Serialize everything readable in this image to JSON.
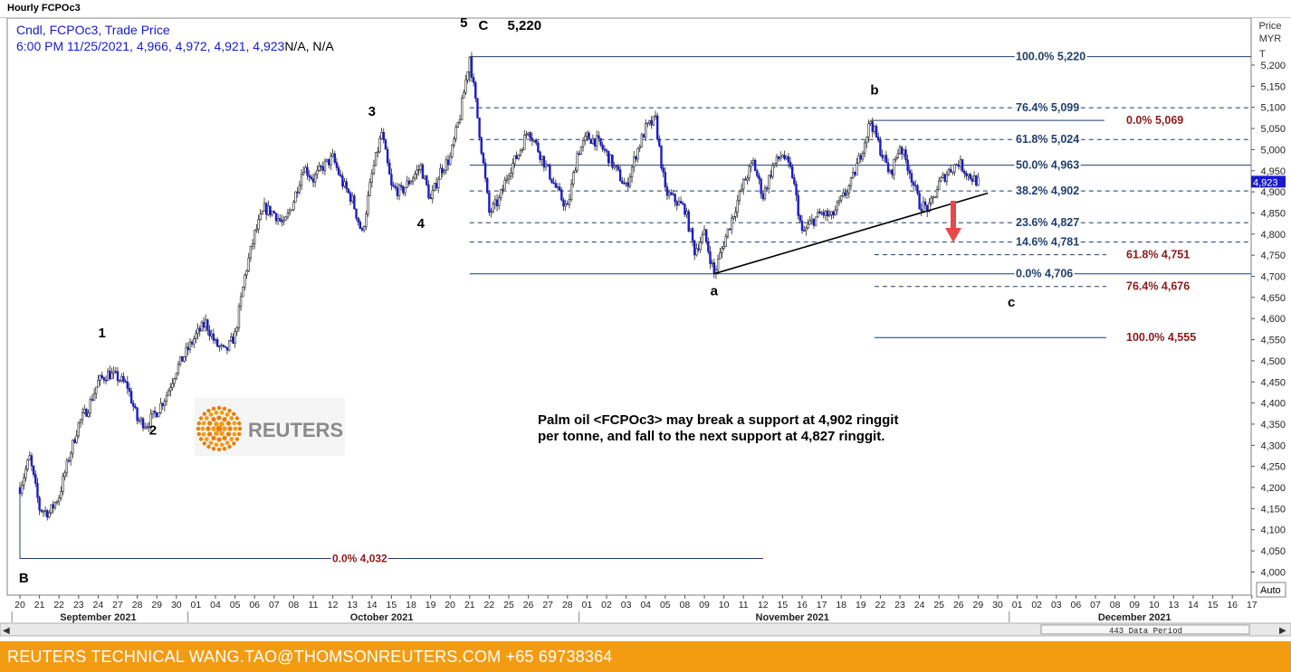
{
  "window": {
    "title": "Hourly FCPOc3"
  },
  "legend": {
    "line1": "Cndl, FCPOc3, Trade Price",
    "line2": "6:00 PM 11/25/2021, 4,966, 4,972, 4,921, 4,923",
    "line2_suffix": "N/A, N/A"
  },
  "price_axis": {
    "header1": "Price",
    "header2": "MYR",
    "header3": "T",
    "current_value": "4,923",
    "auto_label": "Auto"
  },
  "scrollbar": {
    "left_arrow": "◀",
    "right_arrow": "▶",
    "period_label": "443 Data Period"
  },
  "footer": {
    "text": "REUTERS TECHNICAL  WANG.TAO@THOMSONREUTERS.COM  +65 69738364"
  },
  "logo": {
    "text": "REUTERS"
  },
  "colors": {
    "up": "#ffffff",
    "down": "#1a1acc",
    "fib": "#1f3f6b",
    "fib_text": "#1f3f6b",
    "target": "#8b1a1a",
    "arrow": "#e84848",
    "footer": "#f39c12"
  },
  "chart_data": {
    "type": "candlestick",
    "timeframe": "Hourly",
    "instrument": "FCPOc3",
    "ylim": [
      3980,
      5260
    ],
    "yticks": [
      "4,000",
      "4,050",
      "4,100",
      "4,150",
      "4,200",
      "4,250",
      "4,300",
      "4,350",
      "4,400",
      "4,450",
      "4,500",
      "4,550",
      "4,600",
      "4,650",
      "4,700",
      "4,750",
      "4,800",
      "4,850",
      "4,900",
      "4,950",
      "5,000",
      "5,050",
      "5,100",
      "5,150",
      "5,200"
    ],
    "x_dates": [
      "20",
      "21",
      "22",
      "23",
      "24",
      "27",
      "28",
      "29",
      "30",
      "01",
      "04",
      "05",
      "06",
      "07",
      "08",
      "11",
      "12",
      "13",
      "14",
      "15",
      "18",
      "19",
      "20",
      "21",
      "22",
      "25",
      "26",
      "27",
      "28",
      "01",
      "02",
      "03",
      "04",
      "05",
      "08",
      "09",
      "10",
      "11",
      "12",
      "15",
      "16",
      "17",
      "18",
      "19",
      "22",
      "23",
      "24",
      "25",
      "26",
      "29",
      "30",
      "01",
      "02",
      "03",
      "06",
      "07",
      "08",
      "09",
      "10",
      "13",
      "14",
      "15",
      "16",
      "17"
    ],
    "months": [
      "September 2021",
      "October 2021",
      "November 2021",
      "December 2021"
    ],
    "close_path": [
      [
        0,
        4200
      ],
      [
        0.5,
        4270
      ],
      [
        1,
        4150
      ],
      [
        1.5,
        4140
      ],
      [
        2,
        4180
      ],
      [
        2.5,
        4270
      ],
      [
        3,
        4350
      ],
      [
        3.5,
        4390
      ],
      [
        4,
        4450
      ],
      [
        4.5,
        4470
      ],
      [
        5,
        4460
      ],
      [
        5.5,
        4440
      ],
      [
        6,
        4360
      ],
      [
        6.5,
        4350
      ],
      [
        7,
        4380
      ],
      [
        7.5,
        4420
      ],
      [
        8,
        4480
      ],
      [
        8.5,
        4520
      ],
      [
        9,
        4560
      ],
      [
        9.5,
        4590
      ],
      [
        10,
        4540
      ],
      [
        10.5,
        4520
      ],
      [
        11,
        4560
      ],
      [
        11.5,
        4700
      ],
      [
        12,
        4800
      ],
      [
        12.5,
        4860
      ],
      [
        13,
        4850
      ],
      [
        13.5,
        4820
      ],
      [
        14,
        4880
      ],
      [
        14.5,
        4960
      ],
      [
        15,
        4930
      ],
      [
        15.5,
        4960
      ],
      [
        16,
        4980
      ],
      [
        16.5,
        4920
      ],
      [
        17,
        4880
      ],
      [
        17.5,
        4800
      ],
      [
        18,
        4940
      ],
      [
        18.5,
        5040
      ],
      [
        19,
        4910
      ],
      [
        19.5,
        4900
      ],
      [
        20,
        4930
      ],
      [
        20.5,
        4960
      ],
      [
        21,
        4880
      ],
      [
        21.5,
        4950
      ],
      [
        22,
        4980
      ],
      [
        22.5,
        5080
      ],
      [
        23,
        5220
      ],
      [
        23.5,
        5040
      ],
      [
        24,
        4850
      ],
      [
        24.5,
        4880
      ],
      [
        25,
        4950
      ],
      [
        25.5,
        4990
      ],
      [
        26,
        5050
      ],
      [
        26.5,
        5000
      ],
      [
        27,
        4950
      ],
      [
        27.5,
        4900
      ],
      [
        28,
        4860
      ],
      [
        28.5,
        4990
      ],
      [
        29,
        5030
      ],
      [
        29.5,
        5020
      ],
      [
        30,
        4990
      ],
      [
        30.5,
        4950
      ],
      [
        31,
        4910
      ],
      [
        31.5,
        4990
      ],
      [
        32,
        5050
      ],
      [
        32.5,
        5070
      ],
      [
        33,
        4900
      ],
      [
        33.5,
        4880
      ],
      [
        34,
        4860
      ],
      [
        34.5,
        4760
      ],
      [
        35,
        4800
      ],
      [
        35.5,
        4706
      ],
      [
        36,
        4780
      ],
      [
        36.5,
        4850
      ],
      [
        37,
        4920
      ],
      [
        37.5,
        4970
      ],
      [
        38,
        4890
      ],
      [
        38.5,
        4960
      ],
      [
        39,
        4990
      ],
      [
        39.5,
        4940
      ],
      [
        40,
        4800
      ],
      [
        40.5,
        4830
      ],
      [
        41,
        4850
      ],
      [
        41.5,
        4840
      ],
      [
        42,
        4880
      ],
      [
        42.5,
        4920
      ],
      [
        43,
        4990
      ],
      [
        43.5,
        5069
      ],
      [
        44,
        5000
      ],
      [
        44.5,
        4940
      ],
      [
        45,
        5010
      ],
      [
        45.5,
        4950
      ],
      [
        46,
        4870
      ],
      [
        46.5,
        4860
      ],
      [
        47,
        4920
      ],
      [
        47.5,
        4950
      ],
      [
        48,
        4970
      ],
      [
        48.5,
        4940
      ],
      [
        49,
        4923
      ]
    ],
    "elliott_labels": [
      {
        "text": "1",
        "x": 4.2,
        "y": 4555
      },
      {
        "text": "2",
        "x": 6.8,
        "y": 4325
      },
      {
        "text": "3",
        "x": 18.0,
        "y": 5080
      },
      {
        "text": "4",
        "x": 20.5,
        "y": 4815
      },
      {
        "text": "5",
        "x": 22.7,
        "y": 5290
      },
      {
        "text": "C",
        "x": 23.7,
        "y": 5283
      },
      {
        "text": "5,220",
        "x": 25.8,
        "y": 5283
      },
      {
        "text": "B",
        "x": 0.2,
        "y": 3975
      },
      {
        "text": "a",
        "x": 35.5,
        "y": 4655
      },
      {
        "text": "b",
        "x": 43.7,
        "y": 5130
      },
      {
        "text": "c",
        "x": 50.7,
        "y": 4628
      }
    ],
    "fib_retracements": [
      {
        "level": "100.0%",
        "value": "5,220",
        "y": 5220,
        "dash": false
      },
      {
        "level": "76.4%",
        "value": "5,099",
        "y": 5099,
        "dash": true
      },
      {
        "level": "61.8%",
        "value": "5,024",
        "y": 5024,
        "dash": true
      },
      {
        "level": "50.0%",
        "value": "4,963",
        "y": 4963,
        "dash": false
      },
      {
        "level": "38.2%",
        "value": "4,902",
        "y": 4902,
        "dash": true
      },
      {
        "level": "23.6%",
        "value": "4,827",
        "y": 4827,
        "dash": true
      },
      {
        "level": "14.6%",
        "value": "4,781",
        "y": 4781,
        "dash": true
      },
      {
        "level": "0.0%",
        "value": "4,706",
        "y": 4706,
        "dash": false
      }
    ],
    "fib_projections": [
      {
        "level": "0.0%",
        "value": "5,069",
        "y": 5069,
        "dash": false
      },
      {
        "level": "61.8%",
        "value": "4,751",
        "y": 4751,
        "dash": true
      },
      {
        "level": "76.4%",
        "value": "4,676",
        "y": 4676,
        "dash": true
      },
      {
        "level": "100.0%",
        "value": "4,555",
        "y": 4555,
        "dash": false
      }
    ],
    "base_level": {
      "level": "0.0%",
      "value": "4,032",
      "y": 4032
    },
    "trendline": [
      [
        35.5,
        4706
      ],
      [
        49.5,
        4897
      ]
    ],
    "annotation": {
      "line1": "Palm oil <FCPOc3> may break a support at 4,902 ringgit",
      "line2": "per tonne, and fall to the next support at 4,827 ringgit."
    }
  }
}
